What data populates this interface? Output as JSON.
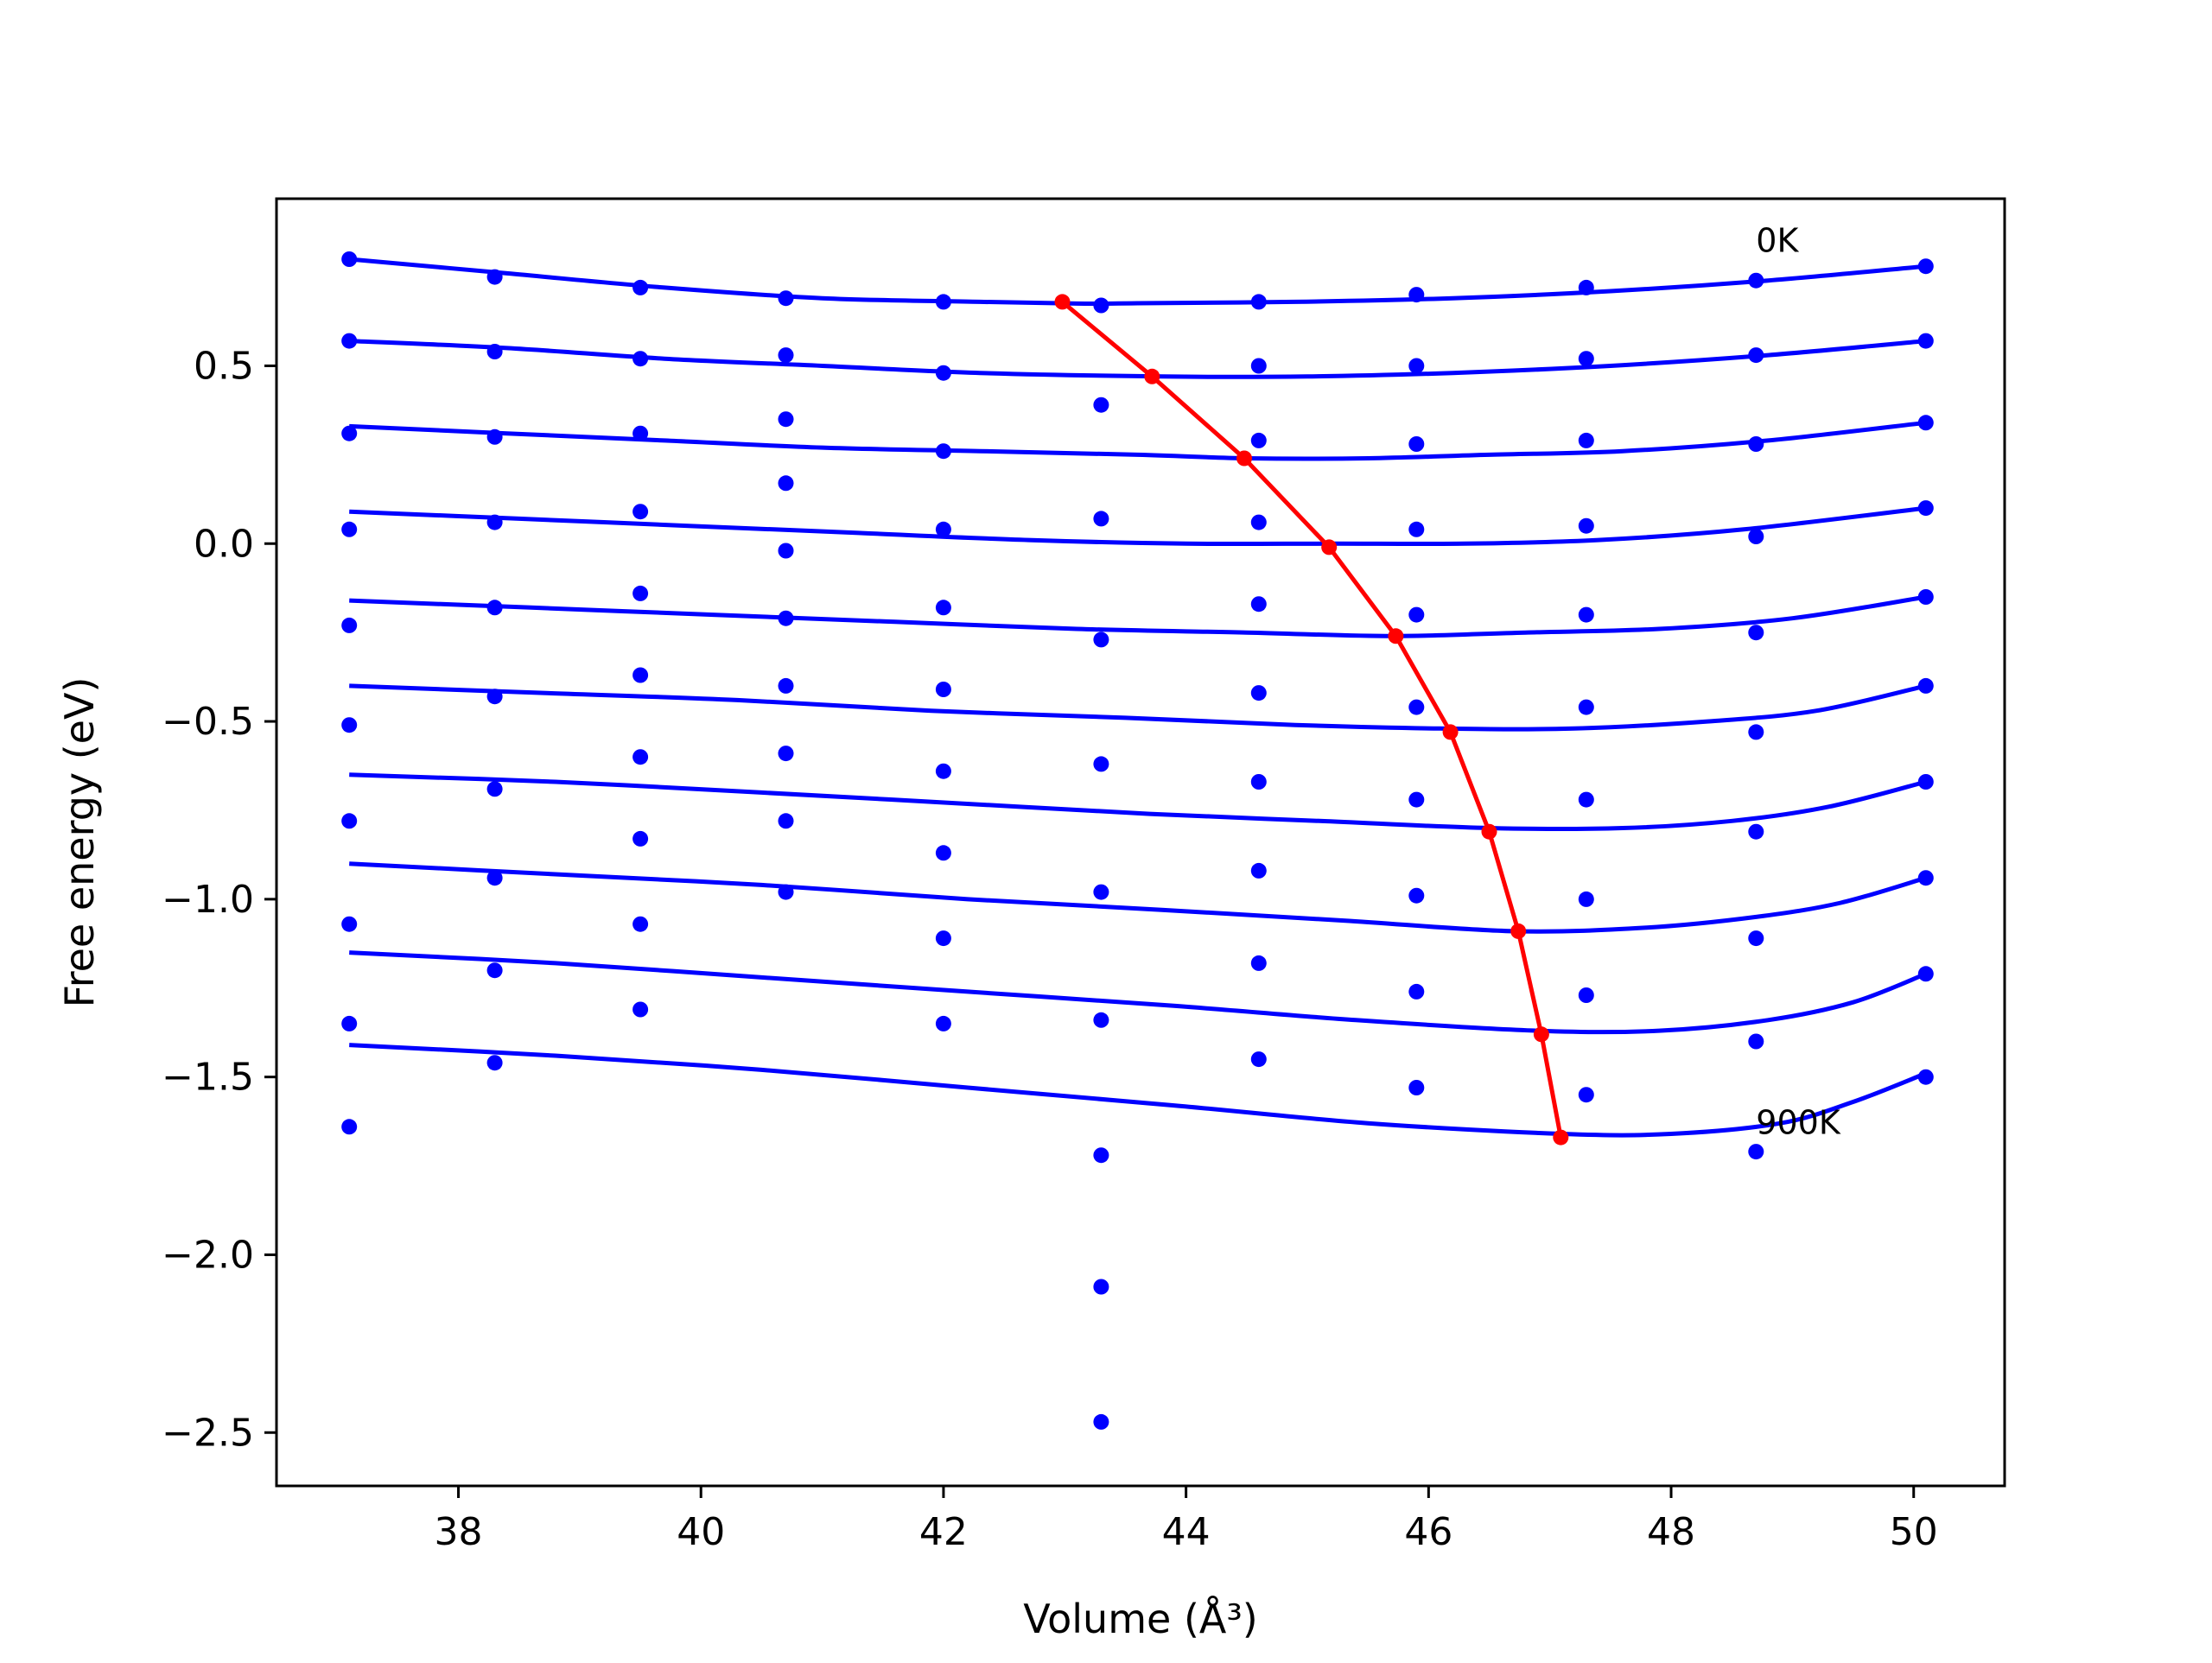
{
  "chart_data": {
    "type": "scatter",
    "title": "",
    "xlabel": "Volume (Å³)",
    "ylabel": "Free energy (eV)",
    "xlim": [
      36.5,
      50.75
    ],
    "ylim": [
      -2.65,
      0.97
    ],
    "xticks": [
      38,
      40,
      42,
      44,
      46,
      48,
      50
    ],
    "yticks": [
      0.5,
      0.0,
      -0.5,
      -1.0,
      -1.5,
      -2.0,
      -2.5
    ],
    "xtick_labels": [
      "38",
      "40",
      "42",
      "44",
      "46",
      "48",
      "50"
    ],
    "ytick_labels": [
      "0.5",
      "0.0",
      "−0.5",
      "−1.0",
      "−1.5",
      "−2.0",
      "−2.5"
    ],
    "grid": false,
    "colors": {
      "points": "#0000ff",
      "fits": "#0000ff",
      "minima": "#ff0000"
    },
    "annotations": [
      {
        "text": "0K",
        "x": 48.7,
        "y": 0.82
      },
      {
        "text": "900K",
        "x": 48.7,
        "y": -1.66
      }
    ],
    "volumes": [
      37.1,
      38.3,
      39.5,
      40.7,
      42.0,
      43.3,
      44.6,
      45.9,
      47.3,
      48.7,
      50.1
    ],
    "point_series": [
      {
        "values": [
          0.8,
          0.75,
          0.72,
          0.69,
          0.68,
          0.67,
          0.68,
          0.7,
          0.72,
          0.74,
          0.78
        ]
      },
      {
        "values": [
          0.57,
          0.54,
          0.52,
          0.53,
          0.48,
          0.39,
          0.5,
          0.5,
          0.52,
          0.53,
          0.57
        ]
      },
      {
        "values": [
          0.31,
          0.3,
          0.31,
          0.35,
          0.26,
          0.07,
          0.29,
          0.28,
          0.29,
          0.28,
          0.34
        ]
      },
      {
        "values": [
          0.04,
          0.06,
          0.09,
          0.17,
          0.04,
          -0.27,
          0.06,
          0.04,
          0.05,
          0.02,
          0.1
        ]
      },
      {
        "values": [
          -0.23,
          -0.18,
          -0.14,
          -0.02,
          -0.18,
          -0.62,
          -0.17,
          -0.2,
          -0.2,
          -0.25,
          -0.15
        ]
      },
      {
        "values": [
          -0.51,
          -0.43,
          -0.37,
          -0.21,
          -0.41,
          -0.98,
          -0.42,
          -0.46,
          -0.46,
          -0.53,
          -0.4
        ]
      },
      {
        "values": [
          -0.78,
          -0.69,
          -0.6,
          -0.4,
          -0.64,
          -1.34,
          -0.67,
          -0.72,
          -0.72,
          -0.81,
          -0.67
        ]
      },
      {
        "values": [
          -1.07,
          -0.94,
          -0.83,
          -0.59,
          -0.87,
          -1.72,
          -0.92,
          -0.99,
          -1.0,
          -1.11,
          -0.94
        ]
      },
      {
        "values": [
          -1.35,
          -1.2,
          -1.07,
          -0.78,
          -1.11,
          -2.09,
          -1.18,
          -1.26,
          -1.27,
          -1.4,
          -1.21
        ]
      },
      {
        "values": [
          -1.64,
          -1.46,
          -1.31,
          -0.98,
          -1.35,
          -2.47,
          -1.45,
          -1.53,
          -1.55,
          -1.71,
          -1.5
        ]
      }
    ],
    "fit_curves": [
      {
        "temperature": "0K",
        "x": [
          37.1,
          38.4,
          39.7,
          41.0,
          42.3,
          43.1,
          43.6,
          44.9,
          46.2,
          47.5,
          48.8,
          50.1
        ],
        "y": [
          0.8,
          0.76,
          0.72,
          0.69,
          0.68,
          0.675,
          0.676,
          0.68,
          0.69,
          0.71,
          0.74,
          0.78
        ]
      },
      {
        "x": [
          37.1,
          38.4,
          39.7,
          41.0,
          42.3,
          43.8,
          45.0,
          46.2,
          47.5,
          48.8,
          50.1
        ],
        "y": [
          0.57,
          0.55,
          0.52,
          0.5,
          0.48,
          0.47,
          0.47,
          0.48,
          0.5,
          0.53,
          0.57
        ]
      },
      {
        "x": [
          37.1,
          38.4,
          39.7,
          41.0,
          42.3,
          43.6,
          44.5,
          45.5,
          46.5,
          47.6,
          48.8,
          50.1
        ],
        "y": [
          0.33,
          0.31,
          0.29,
          0.27,
          0.26,
          0.25,
          0.24,
          0.24,
          0.25,
          0.26,
          0.29,
          0.34
        ]
      },
      {
        "x": [
          37.1,
          38.5,
          39.9,
          41.3,
          42.7,
          44.0,
          45.2,
          46.3,
          47.4,
          48.6,
          50.1
        ],
        "y": [
          0.09,
          0.07,
          0.05,
          0.03,
          0.01,
          0.0,
          0.0,
          0.0,
          0.01,
          0.04,
          0.1
        ]
      },
      {
        "x": [
          37.1,
          38.6,
          40.1,
          41.6,
          43.1,
          44.5,
          45.7,
          46.8,
          47.9,
          49.0,
          50.1
        ],
        "y": [
          -0.16,
          -0.18,
          -0.2,
          -0.22,
          -0.24,
          -0.25,
          -0.26,
          -0.25,
          -0.24,
          -0.21,
          -0.15
        ]
      },
      {
        "x": [
          37.1,
          38.7,
          40.3,
          41.9,
          43.5,
          44.9,
          46.1,
          47.2,
          48.3,
          49.2,
          50.1
        ],
        "y": [
          -0.4,
          -0.42,
          -0.44,
          -0.47,
          -0.49,
          -0.51,
          -0.52,
          -0.52,
          -0.5,
          -0.47,
          -0.4
        ]
      },
      {
        "x": [
          37.1,
          38.8,
          40.5,
          42.1,
          43.7,
          45.1,
          46.5,
          47.6,
          48.5,
          49.3,
          50.1
        ],
        "y": [
          -0.65,
          -0.67,
          -0.7,
          -0.73,
          -0.76,
          -0.78,
          -0.8,
          -0.8,
          -0.78,
          -0.74,
          -0.67
        ]
      },
      {
        "x": [
          37.1,
          38.8,
          40.5,
          42.2,
          43.8,
          45.3,
          46.7,
          47.8,
          48.7,
          49.4,
          50.1
        ],
        "y": [
          -0.9,
          -0.93,
          -0.96,
          -1.0,
          -1.03,
          -1.06,
          -1.09,
          -1.08,
          -1.05,
          -1.01,
          -0.94
        ]
      },
      {
        "x": [
          37.1,
          38.8,
          40.5,
          42.2,
          43.9,
          45.4,
          46.9,
          47.9,
          48.8,
          49.5,
          50.1
        ],
        "y": [
          -1.15,
          -1.18,
          -1.22,
          -1.26,
          -1.3,
          -1.34,
          -1.37,
          -1.37,
          -1.34,
          -1.29,
          -1.21
        ]
      },
      {
        "temperature": "900K",
        "x": [
          37.1,
          38.8,
          40.5,
          42.2,
          43.9,
          45.5,
          47.1,
          48.0,
          48.9,
          49.5,
          50.1
        ],
        "y": [
          -1.41,
          -1.44,
          -1.48,
          -1.53,
          -1.58,
          -1.63,
          -1.66,
          -1.66,
          -1.63,
          -1.57,
          -1.49
        ]
      }
    ],
    "minima_line": {
      "x": [
        42.98,
        43.72,
        44.48,
        45.18,
        45.73,
        46.18,
        46.5,
        46.74,
        46.93,
        47.09
      ],
      "y": [
        0.68,
        0.47,
        0.24,
        -0.01,
        -0.26,
        -0.53,
        -0.81,
        -1.09,
        -1.38,
        -1.67
      ]
    }
  }
}
